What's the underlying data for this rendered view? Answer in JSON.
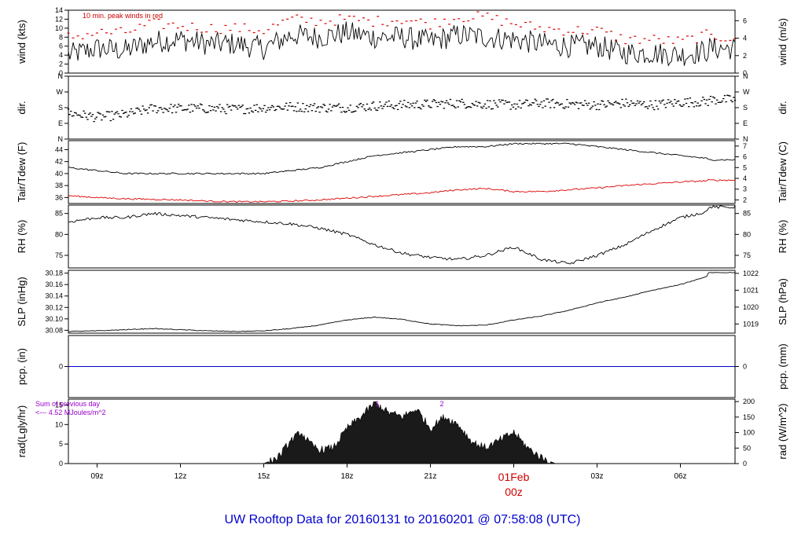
{
  "title": "UW Rooftop Data for 20160131  to  20160201 @ 07:58:08  (UTC)",
  "colors": {
    "black": "#000000",
    "red": "#dd0000",
    "blue": "#0000cc",
    "purple": "#9900cc"
  },
  "x_axis": {
    "range": [
      "2016-01-31 07:58",
      "2016-02-01 07:58"
    ],
    "ticks": [
      "09z",
      "12z",
      "15z",
      "18z",
      "21z",
      "00z",
      "03z",
      "06z"
    ],
    "date_label": "01Feb",
    "date_label_time": "00z"
  },
  "panels": [
    {
      "id": "wind",
      "left_label": "wind (kts)",
      "right_label": "wind (m/s)",
      "left_ticks": [
        "0",
        "2",
        "4",
        "6",
        "8",
        "10",
        "12",
        "14"
      ],
      "right_ticks": [
        "0",
        "2",
        "4",
        "6"
      ],
      "annotation": "10 min. peak winds in red"
    },
    {
      "id": "dir",
      "left_label": "dir.",
      "right_label": "dir.",
      "left_ticks": [
        "N",
        "E",
        "S",
        "W",
        "N"
      ],
      "right_ticks": [
        "N",
        "E",
        "S",
        "W",
        "N"
      ]
    },
    {
      "id": "temp",
      "left_label": "Tair/Tdew (F)",
      "right_label": "Tair/Tdew (C)",
      "left_ticks": [
        "36",
        "38",
        "40",
        "42",
        "44"
      ],
      "right_ticks": [
        "2",
        "3",
        "4",
        "5",
        "6",
        "7"
      ]
    },
    {
      "id": "rh",
      "left_label": "RH (%)",
      "right_label": "RH (%)",
      "left_ticks": [
        "75",
        "80",
        "85"
      ],
      "right_ticks": [
        "75",
        "80",
        "85"
      ]
    },
    {
      "id": "slp",
      "left_label": "SLP (inHg)",
      "right_label": "SLP (hPa)",
      "left_ticks": [
        "30.08",
        "30.10",
        "30.12",
        "30.14",
        "30.16",
        "30.18"
      ],
      "right_ticks": [
        "1019",
        "1020",
        "1021",
        "1022"
      ]
    },
    {
      "id": "pcp",
      "left_label": "pcp. (in)",
      "right_label": "pcp. (mm)",
      "left_ticks": [
        "0"
      ],
      "right_ticks": [
        "0"
      ]
    },
    {
      "id": "rad",
      "left_label": "rad(Lgly/hr)",
      "right_label": "rad (W/m^2)",
      "left_ticks": [
        "0",
        "5",
        "10",
        "15"
      ],
      "right_ticks": [
        "0",
        "50",
        "100",
        "150",
        "200"
      ],
      "annotation_line1": "Sum of previous day",
      "annotation_line2": "<--- 4.52 MJoules/m^2",
      "markers": [
        "1",
        "2"
      ]
    }
  ],
  "chart_data": [
    {
      "type": "line",
      "panel": "wind",
      "ylabel": "wind (kts)",
      "ylim": [
        0,
        14
      ],
      "x": [
        "07:58",
        "09:00",
        "10:00",
        "11:00",
        "12:00",
        "13:00",
        "14:00",
        "15:00",
        "16:00",
        "17:00",
        "18:00",
        "19:00",
        "20:00",
        "21:00",
        "22:00",
        "23:00",
        "00:00",
        "01:00",
        "02:00",
        "03:00",
        "04:00",
        "05:00",
        "06:00",
        "07:00",
        "07:58"
      ],
      "series": [
        {
          "name": "wind",
          "values": [
            4,
            5.5,
            5,
            7,
            7.5,
            6.5,
            6.5,
            5.5,
            8.5,
            8,
            9,
            8,
            8,
            7,
            8.5,
            8,
            7.5,
            6.5,
            6,
            6,
            4.5,
            4.5,
            4,
            5,
            5.5
          ]
        },
        {
          "name": "10 min. peak winds",
          "values": [
            8,
            9,
            9,
            11,
            10.5,
            10,
            10,
            9.5,
            12,
            11.5,
            12,
            11.5,
            12,
            11,
            12.5,
            12.5,
            11,
            10,
            9.5,
            9.5,
            7.5,
            7.5,
            7,
            8.5,
            8
          ]
        }
      ]
    },
    {
      "type": "scatter",
      "panel": "dir",
      "ylabel": "dir.",
      "ylim": [
        0,
        360
      ],
      "x": [
        "07:58",
        "09:00",
        "10:00",
        "11:00",
        "12:00",
        "13:00",
        "14:00",
        "15:00",
        "16:00",
        "17:00",
        "18:00",
        "19:00",
        "20:00",
        "21:00",
        "22:00",
        "23:00",
        "00:00",
        "01:00",
        "02:00",
        "03:00",
        "04:00",
        "05:00",
        "06:00",
        "07:00",
        "07:58"
      ],
      "values": [
        150,
        125,
        140,
        175,
        175,
        175,
        170,
        180,
        185,
        180,
        180,
        190,
        195,
        200,
        205,
        200,
        195,
        205,
        200,
        195,
        205,
        195,
        210,
        215,
        225
      ]
    },
    {
      "type": "line",
      "panel": "temp",
      "ylabel": "Tair/Tdew (F)",
      "ylim": [
        35,
        45.5
      ],
      "x": [
        "07:58",
        "09:00",
        "10:00",
        "11:00",
        "12:00",
        "13:00",
        "14:00",
        "15:00",
        "16:00",
        "17:00",
        "18:00",
        "19:00",
        "20:00",
        "21:00",
        "22:00",
        "23:00",
        "00:00",
        "01:00",
        "02:00",
        "03:00",
        "04:00",
        "05:00",
        "06:00",
        "07:00",
        "07:58"
      ],
      "series": [
        {
          "name": "Tair",
          "values": [
            41,
            40.5,
            40,
            40,
            40,
            40,
            40,
            40,
            40.5,
            41,
            42,
            43,
            43.5,
            44,
            44.5,
            44.5,
            45,
            45,
            45,
            44.5,
            44,
            43.5,
            43,
            42.5,
            42.3
          ]
        },
        {
          "name": "Tdew",
          "values": [
            36.3,
            36,
            35.8,
            35.7,
            35.6,
            35.4,
            35.3,
            35.3,
            35.4,
            35.6,
            35.9,
            36.2,
            36.5,
            36.8,
            37.3,
            37.5,
            37,
            37,
            37.3,
            37.6,
            38,
            38.3,
            38.6,
            38.8,
            38.9
          ]
        }
      ]
    },
    {
      "type": "line",
      "panel": "rh",
      "ylabel": "RH (%)",
      "ylim": [
        72,
        87
      ],
      "x": [
        "07:58",
        "09:00",
        "10:00",
        "11:00",
        "12:00",
        "13:00",
        "14:00",
        "15:00",
        "16:00",
        "17:00",
        "18:00",
        "19:00",
        "20:00",
        "21:00",
        "22:00",
        "23:00",
        "00:00",
        "01:00",
        "02:00",
        "03:00",
        "04:00",
        "05:00",
        "06:00",
        "07:00",
        "07:58"
      ],
      "values": [
        83,
        84,
        84,
        85,
        84.5,
        84,
        83.5,
        83,
        82.5,
        81.5,
        80,
        77.5,
        75.5,
        74.5,
        74,
        75,
        77,
        74,
        73,
        75,
        77.5,
        81,
        84,
        85.5,
        86.5
      ]
    },
    {
      "type": "line",
      "panel": "slp",
      "ylabel": "SLP (inHg)",
      "ylim": [
        30.075,
        30.185
      ],
      "x": [
        "07:58",
        "09:00",
        "10:00",
        "11:00",
        "12:00",
        "13:00",
        "14:00",
        "15:00",
        "16:00",
        "17:00",
        "18:00",
        "19:00",
        "20:00",
        "21:00",
        "22:00",
        "23:00",
        "00:00",
        "01:00",
        "02:00",
        "03:00",
        "04:00",
        "05:00",
        "06:00",
        "07:00",
        "07:58"
      ],
      "values": [
        30.078,
        30.079,
        30.081,
        30.083,
        30.081,
        30.079,
        30.078,
        30.079,
        30.083,
        30.089,
        30.098,
        30.103,
        30.099,
        30.091,
        30.088,
        30.089,
        30.098,
        30.105,
        30.115,
        30.128,
        30.138,
        30.15,
        30.16,
        30.175,
        30.181
      ]
    },
    {
      "type": "line",
      "panel": "pcp",
      "ylabel": "pcp. (in)",
      "ylim": [
        -1,
        1
      ],
      "x": [
        "07:58",
        "07:58"
      ],
      "values": [
        0,
        0
      ]
    },
    {
      "type": "area",
      "panel": "rad",
      "ylabel": "rad(Lgly/hr)",
      "ylim": [
        0,
        16.5
      ],
      "x": [
        "15:00",
        "15:30",
        "16:00",
        "16:20",
        "16:40",
        "17:00",
        "17:30",
        "18:00",
        "18:30",
        "19:00",
        "19:30",
        "20:00",
        "20:30",
        "21:00",
        "21:30",
        "22:00",
        "22:30",
        "23:00",
        "23:30",
        "00:00",
        "00:30",
        "01:00",
        "01:30"
      ],
      "values": [
        0,
        1.5,
        6,
        8,
        5,
        3.5,
        4,
        9,
        12,
        15.5,
        13,
        12,
        14,
        9,
        12,
        10,
        5.5,
        4,
        6,
        8,
        4,
        1.5,
        0
      ]
    }
  ]
}
